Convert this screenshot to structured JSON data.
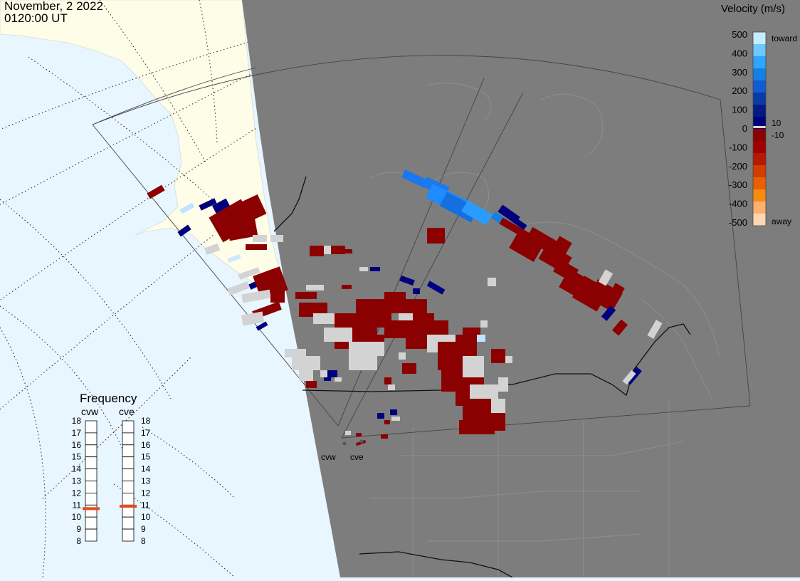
{
  "header": {
    "date": "November, 2 2022",
    "time": "0120:00 UT"
  },
  "colorbar": {
    "title": "Velocity (m/s)",
    "ticks": [
      "500",
      "400",
      "300",
      "200",
      "100",
      "0",
      "-100",
      "-200",
      "-300",
      "-400",
      "-500"
    ],
    "inner_labels": [
      "10",
      "-10"
    ],
    "end_labels": {
      "top": "toward",
      "bottom": "away"
    },
    "colors": [
      "#c8ecff",
      "#6cc8ff",
      "#2ea6ff",
      "#1480e6",
      "#0f5cd4",
      "#0a3aa8",
      "#031a82",
      "#00007a",
      "#8b0000",
      "#a00000",
      "#b81800",
      "#d43c00",
      "#e86000",
      "#f88a10",
      "#fbb070",
      "#ffd7b0"
    ]
  },
  "frequency": {
    "title": "Frequency",
    "radars": [
      "cvw",
      "cve"
    ],
    "levels": [
      "18",
      "17",
      "16",
      "15",
      "14",
      "13",
      "12",
      "11",
      "10",
      "9",
      "8"
    ],
    "cvw_value_mhz": 10.7,
    "cve_value_mhz": 10.9,
    "marker_color": "#e84a1a"
  },
  "map": {
    "radar_labels": [
      "cvw",
      "cve"
    ],
    "colors": {
      "ocean": "#e8f6ff",
      "land_day": "#fdfde8",
      "night": "#7d7d7d",
      "scatter_red": "#8b0000",
      "ground_scatter": "#d3d3d3",
      "navy": "#00007f",
      "blue": "#1e88ff"
    }
  }
}
